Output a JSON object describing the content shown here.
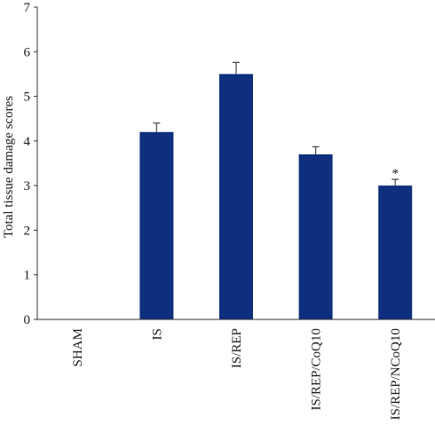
{
  "chart_data": {
    "type": "bar",
    "categories": [
      "SHAM",
      "IS",
      "IS/REP",
      "IS/REP/CoQ10",
      "IS/REP/NCoQ10"
    ],
    "values": [
      0,
      4.2,
      5.5,
      3.7,
      3.0
    ],
    "errors": [
      0,
      0.2,
      0.26,
      0.17,
      0.14
    ],
    "annotations": [
      "",
      "",
      "",
      "",
      "*"
    ],
    "xlabel": "",
    "ylabel": "Total tissue damage scores",
    "ylim": [
      0,
      7
    ],
    "yticks": [
      0,
      1,
      2,
      3,
      4,
      5,
      6,
      7
    ],
    "grid": false,
    "bar_color": "#0d2f7e"
  }
}
